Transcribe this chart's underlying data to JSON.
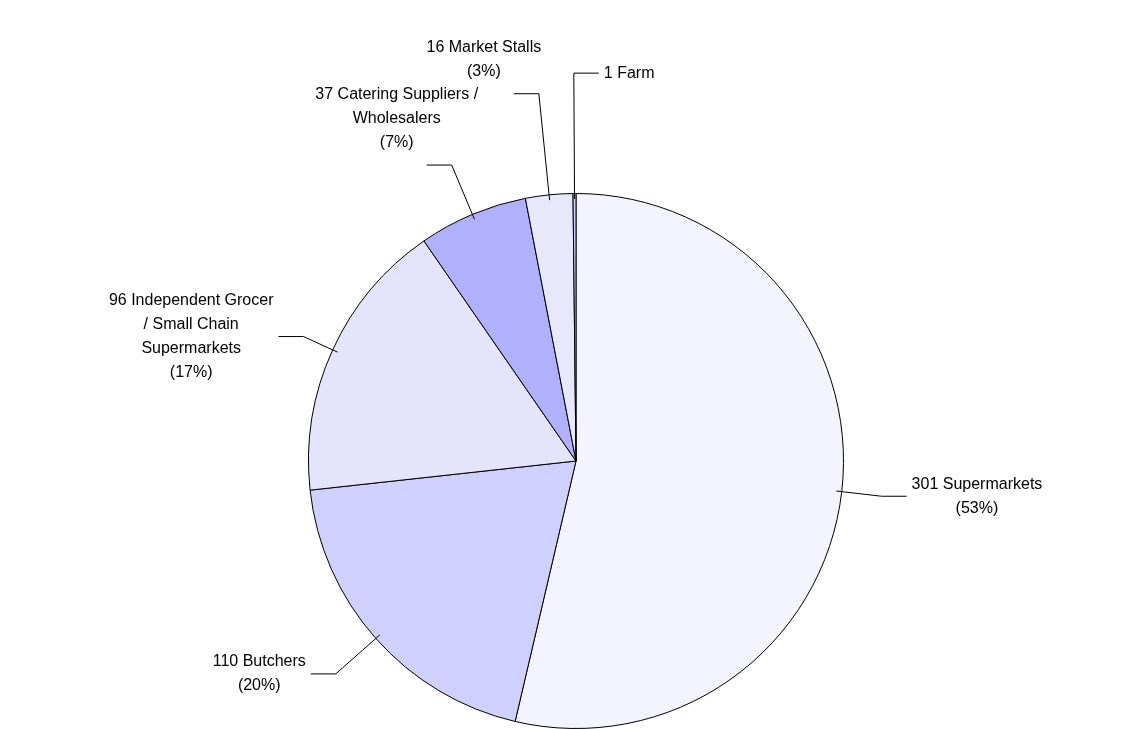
{
  "chart_data": {
    "type": "pie",
    "categories": [
      "301 Supermarkets\n(53%)",
      "110 Butchers\n(20%)",
      "96 Independent Grocer\n/ Small Chain\nSupermarkets\n(17%)",
      "37 Catering Suppliers /\nWholesalers\n(7%)",
      "16 Market Stalls\n(3%)",
      "1 Farm"
    ],
    "values": [
      301,
      110,
      96,
      37,
      16,
      1
    ],
    "colors": [
      "#f4f4ff",
      "#d0d0fc",
      "#e4e4fc",
      "#b0b0fc",
      "#e8e8fc",
      "#d0d0fc"
    ],
    "legend": false
  }
}
